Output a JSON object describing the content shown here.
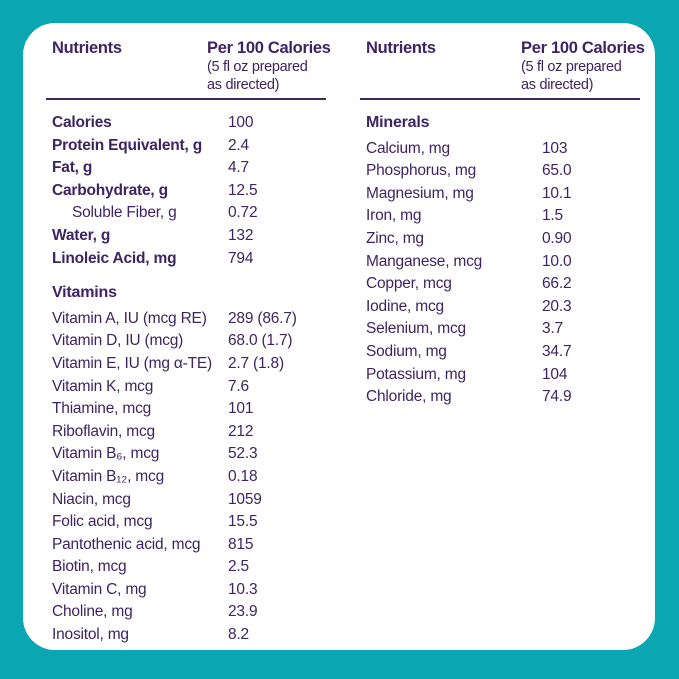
{
  "theme": {
    "border_color": "#0AA6B2",
    "card_color": "#FFFFFF",
    "text_color": "#3D2462"
  },
  "columns": [
    {
      "header": {
        "col1": "Nutrients",
        "col2_line1": "Per 100 Calories",
        "col2_line2": "(5 fl oz prepared",
        "col2_line3": "as directed)"
      },
      "sections": [
        {
          "title": "",
          "rows": [
            {
              "label": "Calories",
              "value": "100",
              "bold": true
            },
            {
              "label": "Protein Equivalent, g",
              "value": "2.4",
              "bold": true
            },
            {
              "label": "Fat, g",
              "value": "4.7",
              "bold": true
            },
            {
              "label": "Carbohydrate, g",
              "value": "12.5",
              "bold": true
            },
            {
              "label": "Soluble Fiber, g",
              "value": "0.72",
              "indent": true
            },
            {
              "label": "Water, g",
              "value": "132",
              "bold": true
            },
            {
              "label": "Linoleic Acid, mg",
              "value": "794",
              "bold": true
            }
          ]
        },
        {
          "title": "Vitamins",
          "rows": [
            {
              "label": "Vitamin A, IU (mcg RE)",
              "value": "289 (86.7)"
            },
            {
              "label": "Vitamin D, IU (mcg)",
              "value": "68.0 (1.7)"
            },
            {
              "label": "Vitamin E, IU (mg α-TE)",
              "value": "2.7 (1.8)"
            },
            {
              "label": "Vitamin K, mcg",
              "value": "7.6"
            },
            {
              "label": "Thiamine, mcg",
              "value": "101"
            },
            {
              "label": "Riboflavin, mcg",
              "value": "212"
            },
            {
              "label": "Vitamin B₆, mcg",
              "value": "52.3"
            },
            {
              "label": "Vitamin B₁₂, mcg",
              "value": "0.18"
            },
            {
              "label": "Niacin, mcg",
              "value": "1059"
            },
            {
              "label": "Folic acid, mcg",
              "value": "15.5"
            },
            {
              "label": "Pantothenic acid, mcg",
              "value": "815"
            },
            {
              "label": "Biotin, mcg",
              "value": "2.5"
            },
            {
              "label": "Vitamin C, mg",
              "value": "10.3"
            },
            {
              "label": "Choline, mg",
              "value": "23.9"
            },
            {
              "label": "Inositol, mg",
              "value": "8.2"
            }
          ]
        }
      ]
    },
    {
      "header": {
        "col1": "Nutrients",
        "col2_line1": "Per 100 Calories",
        "col2_line2": "(5 fl oz prepared",
        "col2_line3": "as directed)"
      },
      "sections": [
        {
          "title": "Minerals",
          "rows": [
            {
              "label": "Calcium, mg",
              "value": "103"
            },
            {
              "label": "Phosphorus, mg",
              "value": "65.0"
            },
            {
              "label": "Magnesium, mg",
              "value": "10.1"
            },
            {
              "label": "Iron, mg",
              "value": "1.5"
            },
            {
              "label": "Zinc, mg",
              "value": "0.90"
            },
            {
              "label": "Manganese, mcg",
              "value": "10.0"
            },
            {
              "label": "Copper, mcg",
              "value": "66.2"
            },
            {
              "label": "Iodine, mcg",
              "value": "20.3"
            },
            {
              "label": "Selenium, mcg",
              "value": "3.7"
            },
            {
              "label": "Sodium, mg",
              "value": "34.7"
            },
            {
              "label": "Potassium, mg",
              "value": "104"
            },
            {
              "label": "Chloride, mg",
              "value": "74.9"
            }
          ]
        }
      ]
    }
  ]
}
